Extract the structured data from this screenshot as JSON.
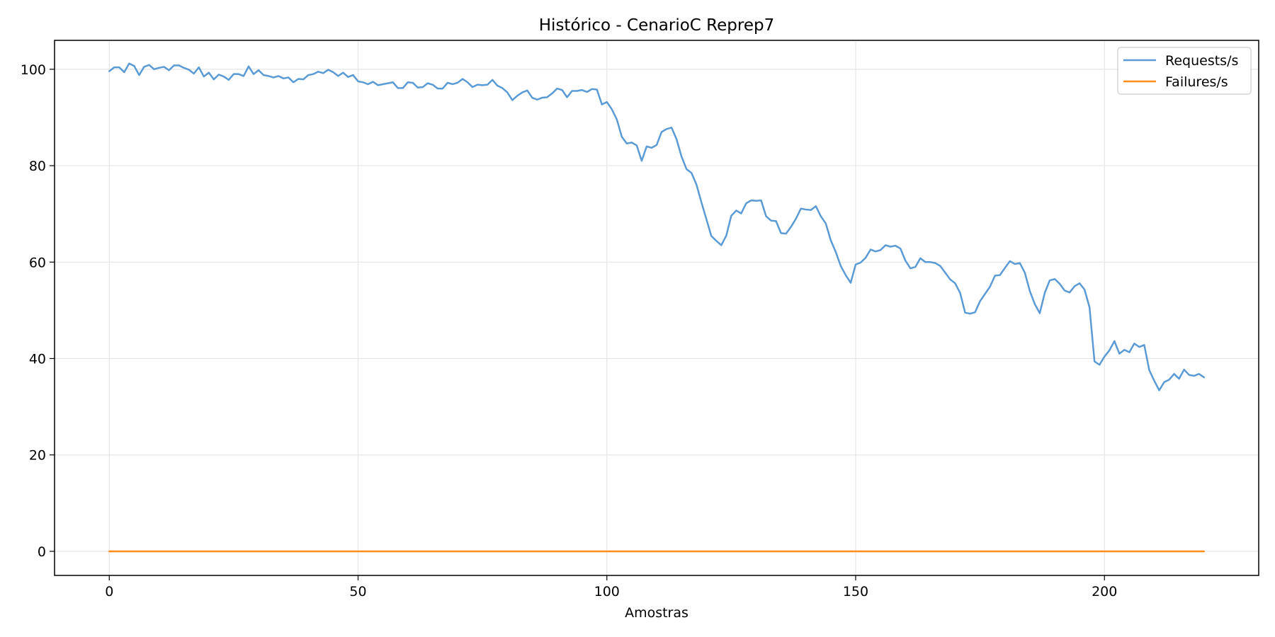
{
  "chart_data": {
    "type": "line",
    "title": "Histórico - CenarioC Reprep7",
    "xlabel": "Amostras",
    "ylabel": "",
    "xlim": [
      -11,
      231
    ],
    "ylim": [
      -5,
      106
    ],
    "xticks": [
      0,
      50,
      100,
      150,
      200
    ],
    "yticks": [
      0,
      20,
      40,
      60,
      80,
      100
    ],
    "grid": true,
    "legend_position": "top-right",
    "colors": {
      "requests": "#5b9bd5",
      "failures": "#ff8c1a",
      "grid": "#e6e6e6"
    },
    "series": [
      {
        "name": "Requests/s",
        "values": [
          99.6,
          100.4,
          100.4,
          99.4,
          101.2,
          100.7,
          98.8,
          100.5,
          100.9,
          100.0,
          100.3,
          100.5,
          99.8,
          100.8,
          100.8,
          100.3,
          99.9,
          99.1,
          100.4,
          98.5,
          99.3,
          97.9,
          98.9,
          98.5,
          97.8,
          99.0,
          99.0,
          98.6,
          100.6,
          99.0,
          99.8,
          98.8,
          98.6,
          98.3,
          98.6,
          98.1,
          98.3,
          97.3,
          98.0,
          97.9,
          98.8,
          99.0,
          99.5,
          99.2,
          99.9,
          99.4,
          98.6,
          99.3,
          98.4,
          98.8,
          97.5,
          97.3,
          96.9,
          97.4,
          96.7,
          96.9,
          97.1,
          97.3,
          96.1,
          96.1,
          97.3,
          97.2,
          96.2,
          96.3,
          97.1,
          96.8,
          96.0,
          96.0,
          97.2,
          96.9,
          97.2,
          98.0,
          97.3,
          96.3,
          96.8,
          96.7,
          96.8,
          97.8,
          96.6,
          96.1,
          95.2,
          93.6,
          94.5,
          95.2,
          95.6,
          94.1,
          93.7,
          94.1,
          94.2,
          95.0,
          96.0,
          95.7,
          94.2,
          95.5,
          95.5,
          95.7,
          95.3,
          95.9,
          95.8,
          92.7,
          93.2,
          91.7,
          89.6,
          86.0,
          84.6,
          84.8,
          84.2,
          81.0,
          84.0,
          83.7,
          84.3,
          87.0,
          87.6,
          87.9,
          85.5,
          81.9,
          79.3,
          78.5,
          76.1,
          72.4,
          68.9,
          65.4,
          64.4,
          63.5,
          65.5,
          69.6,
          70.7,
          70.1,
          72.2,
          72.8,
          72.7,
          72.8,
          69.5,
          68.6,
          68.5,
          66.0,
          65.9,
          67.3,
          69.0,
          71.1,
          70.9,
          70.8,
          71.6,
          69.5,
          68.0,
          64.5,
          62.1,
          59.2,
          57.3,
          55.7,
          59.5,
          59.9,
          60.9,
          62.6,
          62.2,
          62.5,
          63.5,
          63.2,
          63.4,
          62.8,
          60.3,
          58.7,
          59.0,
          60.8,
          60.0,
          60.0,
          59.8,
          59.2,
          57.8,
          56.4,
          55.6,
          53.6,
          49.5,
          49.3,
          49.6,
          51.9,
          53.4,
          54.9,
          57.2,
          57.3,
          58.8,
          60.2,
          59.6,
          59.8,
          57.8,
          54.0,
          51.3,
          49.4,
          53.6,
          56.2,
          56.5,
          55.5,
          54.1,
          53.7,
          55.0,
          55.6,
          54.3,
          50.6,
          39.4,
          38.7,
          40.4,
          41.7,
          43.6,
          41.0,
          41.8,
          41.3,
          43.1,
          42.4,
          42.8,
          37.6,
          35.4,
          33.4,
          35.1,
          35.6,
          36.8,
          35.8,
          37.7,
          36.6,
          36.4,
          36.8,
          36.1
        ]
      },
      {
        "name": "Failures/s",
        "values": [
          0,
          0,
          0,
          0,
          0,
          0,
          0,
          0,
          0,
          0,
          0,
          0,
          0,
          0,
          0,
          0,
          0,
          0,
          0,
          0,
          0,
          0,
          0,
          0,
          0,
          0,
          0,
          0,
          0,
          0,
          0,
          0,
          0,
          0,
          0,
          0,
          0,
          0,
          0,
          0,
          0,
          0,
          0,
          0,
          0,
          0,
          0,
          0,
          0,
          0,
          0,
          0,
          0,
          0,
          0,
          0,
          0,
          0,
          0,
          0,
          0,
          0,
          0,
          0,
          0,
          0,
          0,
          0,
          0,
          0,
          0,
          0,
          0,
          0,
          0,
          0,
          0,
          0,
          0,
          0,
          0,
          0,
          0,
          0,
          0,
          0,
          0,
          0,
          0,
          0,
          0,
          0,
          0,
          0,
          0,
          0,
          0,
          0,
          0,
          0,
          0,
          0,
          0,
          0,
          0,
          0,
          0,
          0,
          0,
          0,
          0,
          0,
          0,
          0,
          0,
          0,
          0,
          0,
          0,
          0,
          0,
          0,
          0,
          0,
          0,
          0,
          0,
          0,
          0,
          0,
          0,
          0,
          0,
          0,
          0,
          0,
          0,
          0,
          0,
          0,
          0,
          0,
          0,
          0,
          0,
          0,
          0,
          0,
          0,
          0,
          0,
          0,
          0,
          0,
          0,
          0,
          0,
          0,
          0,
          0,
          0,
          0,
          0,
          0,
          0,
          0,
          0,
          0,
          0,
          0,
          0,
          0,
          0,
          0,
          0,
          0,
          0,
          0,
          0,
          0,
          0,
          0,
          0,
          0,
          0,
          0,
          0,
          0,
          0,
          0,
          0,
          0,
          0,
          0,
          0,
          0,
          0,
          0,
          0,
          0,
          0,
          0,
          0,
          0,
          0,
          0,
          0,
          0,
          0,
          0,
          0,
          0,
          0,
          0,
          0,
          0,
          0,
          0,
          0,
          0,
          0
        ]
      }
    ]
  }
}
